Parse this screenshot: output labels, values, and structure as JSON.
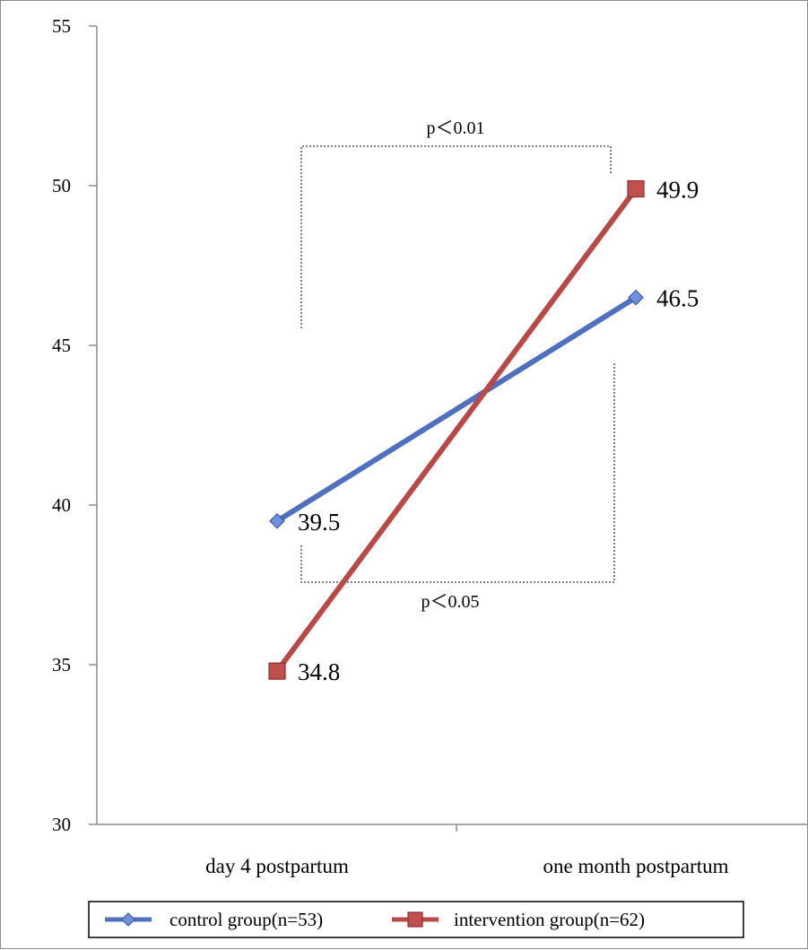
{
  "chart_data": {
    "type": "line",
    "categories": [
      "day 4 postpartum",
      "one month postpartum"
    ],
    "series": [
      {
        "name": "control group(n=53)",
        "values": [
          39.5,
          46.5
        ],
        "color": "#4f6fbf",
        "marker": "diamond",
        "marker_color": "#6f8fdf"
      },
      {
        "name": "intervention group(n=62)",
        "values": [
          34.8,
          49.9
        ],
        "color": "#b84945",
        "marker": "square",
        "marker_color": "#c0504d"
      }
    ],
    "ylim": [
      30,
      55
    ],
    "yticks": [
      30,
      35,
      40,
      45,
      50,
      55
    ],
    "grid": false,
    "legend_position": "bottom",
    "annotations": [
      {
        "id": "top",
        "text": "p＜0.01"
      },
      {
        "id": "bottom",
        "text": "p＜0.05"
      }
    ],
    "title": "",
    "xlabel": "",
    "ylabel": ""
  }
}
